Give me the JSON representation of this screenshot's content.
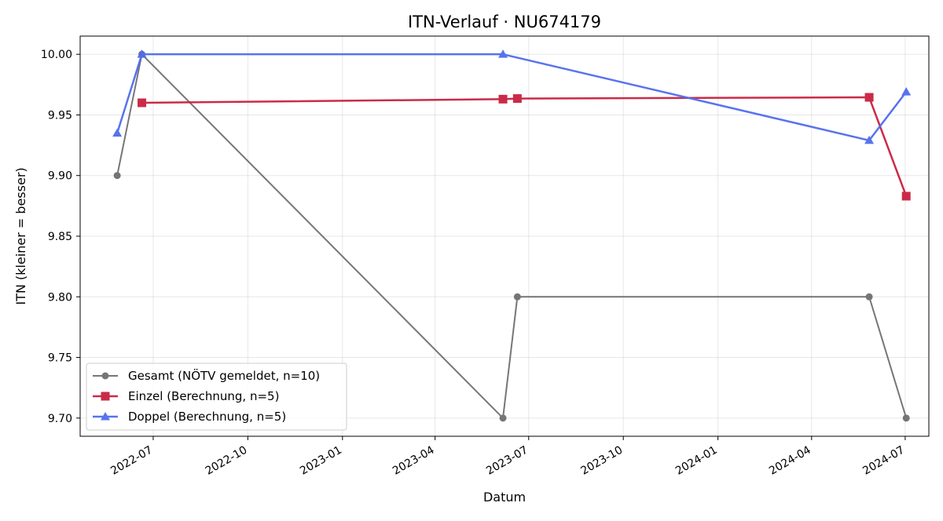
{
  "chart_data": {
    "type": "line",
    "title": "ITN-Verlauf · NU674179",
    "xlabel": "Datum",
    "ylabel": "ITN  (kleiner = besser)",
    "ylim": [
      9.685,
      10.015
    ],
    "xlim": [
      "2022-04-21",
      "2024-07-24"
    ],
    "yticks": [
      9.7,
      9.75,
      9.8,
      9.85,
      9.9,
      9.95,
      10.0
    ],
    "ytick_labels": [
      "9.70",
      "9.75",
      "9.80",
      "9.85",
      "9.90",
      "9.95",
      "10.00"
    ],
    "xticks": [
      "2022-07-01",
      "2022-10-01",
      "2023-01-01",
      "2023-04-01",
      "2023-07-01",
      "2023-10-01",
      "2024-01-01",
      "2024-04-01",
      "2024-07-01"
    ],
    "xtick_labels": [
      "2022-07",
      "2022-10",
      "2023-01",
      "2023-04",
      "2023-07",
      "2023-10",
      "2024-01",
      "2024-04",
      "2024-07"
    ],
    "grid": true,
    "legend_position": "lower-left",
    "series": [
      {
        "name": "Gesamt (NÖTV gemeldet, n=10)",
        "color": "#555555",
        "marker": "circle",
        "points": [
          {
            "x": "2022-05-27",
            "y": 9.9
          },
          {
            "x": "2022-06-20",
            "y": 10.0
          },
          {
            "x": "2023-06-06",
            "y": 9.7
          },
          {
            "x": "2023-06-20",
            "y": 9.8
          },
          {
            "x": "2024-05-27",
            "y": 9.8
          },
          {
            "x": "2024-07-02",
            "y": 9.7
          }
        ]
      },
      {
        "name": "Einzel (Berechnung, n=5)",
        "color": "#c8203f",
        "marker": "square",
        "points": [
          {
            "x": "2022-06-20",
            "y": 9.96
          },
          {
            "x": "2023-06-06",
            "y": 9.963
          },
          {
            "x": "2023-06-20",
            "y": 9.9635
          },
          {
            "x": "2024-05-27",
            "y": 9.9645
          },
          {
            "x": "2024-07-02",
            "y": 9.883
          }
        ]
      },
      {
        "name": "Doppel (Berechnung, n=5)",
        "color": "#4f6cef",
        "marker": "triangle",
        "points": [
          {
            "x": "2022-05-27",
            "y": 9.935
          },
          {
            "x": "2022-06-20",
            "y": 10.0
          },
          {
            "x": "2023-06-06",
            "y": 10.0
          },
          {
            "x": "2024-05-27",
            "y": 9.929
          },
          {
            "x": "2024-07-02",
            "y": 9.969
          }
        ]
      }
    ]
  }
}
